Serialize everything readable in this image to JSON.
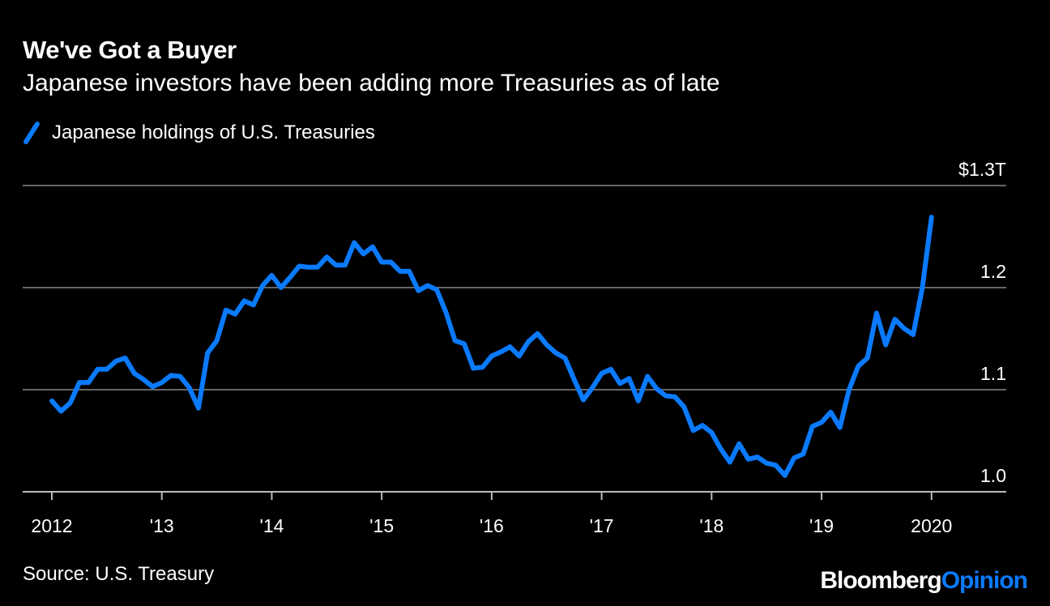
{
  "title": "We've Got a Buyer",
  "subtitle": "Japanese investors have been adding more Treasuries as of late",
  "source": "Source: U.S. Treasury",
  "brand": {
    "main": "Bloomberg",
    "accent": "Opinion"
  },
  "colors": {
    "line": "#0a7aff",
    "grid": "#666666",
    "background": "#000000"
  },
  "chart_data": {
    "type": "line",
    "title": "We've Got a Buyer",
    "xlabel": "",
    "ylabel": "",
    "unit": "$T",
    "start": "2012-01",
    "frequency": "monthly",
    "ylim": [
      1.0,
      1.3
    ],
    "grid": true,
    "legend_position": "top-left",
    "y_ticks": [
      {
        "value": 1.0,
        "label": "1.0"
      },
      {
        "value": 1.1,
        "label": "1.1"
      },
      {
        "value": 1.2,
        "label": "1.2"
      },
      {
        "value": 1.3,
        "label": "$1.3T"
      }
    ],
    "x_ticks": [
      {
        "month_index": 0,
        "label": "2012"
      },
      {
        "month_index": 12,
        "label": "'13"
      },
      {
        "month_index": 24,
        "label": "'14"
      },
      {
        "month_index": 36,
        "label": "'15"
      },
      {
        "month_index": 48,
        "label": "'16"
      },
      {
        "month_index": 60,
        "label": "'17"
      },
      {
        "month_index": 72,
        "label": "'18"
      },
      {
        "month_index": 84,
        "label": "'19"
      },
      {
        "month_index": 96,
        "label": "2020"
      }
    ],
    "series": [
      {
        "name": "Japanese holdings of U.S. Treasuries",
        "values": [
          1.089,
          1.079,
          1.087,
          1.107,
          1.107,
          1.12,
          1.12,
          1.128,
          1.131,
          1.116,
          1.11,
          1.103,
          1.107,
          1.114,
          1.113,
          1.102,
          1.082,
          1.136,
          1.148,
          1.178,
          1.174,
          1.187,
          1.183,
          1.202,
          1.212,
          1.2,
          1.21,
          1.221,
          1.22,
          1.22,
          1.23,
          1.222,
          1.222,
          1.244,
          1.233,
          1.24,
          1.225,
          1.225,
          1.216,
          1.216,
          1.197,
          1.202,
          1.198,
          1.176,
          1.148,
          1.145,
          1.121,
          1.122,
          1.133,
          1.137,
          1.142,
          1.133,
          1.147,
          1.155,
          1.144,
          1.136,
          1.131,
          1.11,
          1.09,
          1.102,
          1.116,
          1.12,
          1.106,
          1.111,
          1.089,
          1.113,
          1.101,
          1.094,
          1.093,
          1.083,
          1.06,
          1.065,
          1.058,
          1.042,
          1.029,
          1.047,
          1.032,
          1.034,
          1.028,
          1.026,
          1.016,
          1.033,
          1.037,
          1.064,
          1.068,
          1.078,
          1.063,
          1.1,
          1.123,
          1.131,
          1.175,
          1.144,
          1.169,
          1.16,
          1.154,
          1.2,
          1.269
        ]
      }
    ]
  }
}
